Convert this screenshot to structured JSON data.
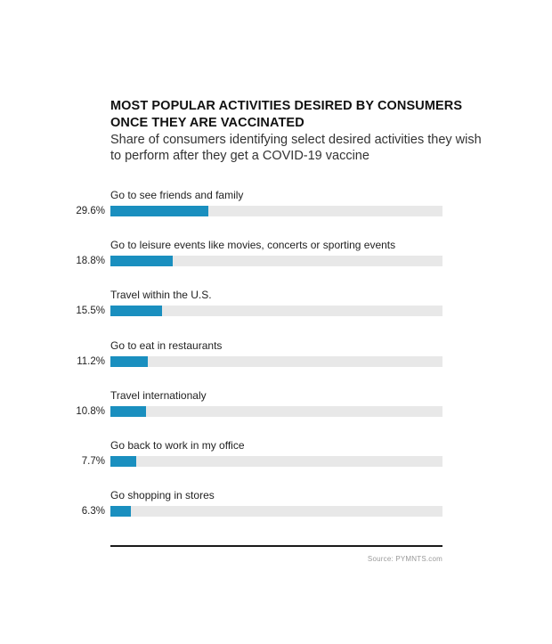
{
  "chart_data": {
    "type": "bar",
    "orientation": "horizontal",
    "title": "MOST POPULAR ACTIVITIES DESIRED BY CONSUMERS ONCE THEY ARE VACCINATED",
    "subtitle": "Share of consumers identifying select desired activities they wish to perform after they get a COVID-19 vaccine",
    "categories": [
      "Go to see friends and family",
      "Go to leisure events like movies, concerts or sporting events",
      "Travel within the U.S.",
      "Go to eat in restaurants",
      "Travel internationaly",
      "Go back to work in my office",
      "Go shopping in stores"
    ],
    "values": [
      29.6,
      18.8,
      15.5,
      11.2,
      10.8,
      7.7,
      6.3
    ],
    "value_labels": [
      "29.6%",
      "18.8%",
      "15.5%",
      "11.2%",
      "10.8%",
      "7.7%",
      "6.3%"
    ],
    "xlim": [
      0,
      100
    ],
    "xlabel": "",
    "ylabel": "",
    "grid": false,
    "bar_color": "#1a8fbf",
    "track_color": "#e8e8e8",
    "source": "Source: PYMNTS.com"
  }
}
